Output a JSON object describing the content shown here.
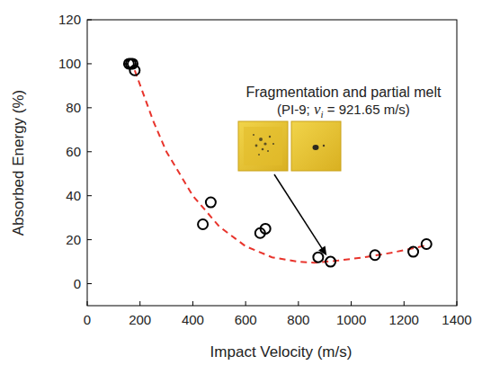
{
  "chart_data": {
    "type": "scatter",
    "x_label": "Impact Velocity (m/s)",
    "y_label": "Absorbed Energy (%)",
    "xlim": [
      0,
      1400
    ],
    "ylim": [
      -10,
      120
    ],
    "xticks": [
      0,
      200,
      400,
      600,
      800,
      1000,
      1200,
      1400
    ],
    "yticks": [
      0,
      20,
      40,
      60,
      80,
      100,
      120
    ],
    "grid": false,
    "series": [
      {
        "type": "scatter",
        "marker": "circle",
        "color": "#000000",
        "x": [
          158,
          165,
          172,
          180,
          438,
          468,
          655,
          675,
          875,
          921.65,
          1090,
          1235,
          1285
        ],
        "values": [
          100,
          100,
          100,
          97,
          27,
          37,
          23,
          25,
          12,
          10,
          13,
          14.5,
          18
        ]
      },
      {
        "type": "line",
        "line_style": "dashed",
        "color": "#e8342c",
        "x": [
          180,
          250,
          300,
          400,
          500,
          600,
          700,
          800,
          860,
          950,
          1050,
          1150,
          1250,
          1285
        ],
        "values": [
          97,
          74,
          60,
          40,
          26,
          17,
          12,
          10,
          9.5,
          10.5,
          12,
          14,
          16.5,
          17.5
        ]
      }
    ],
    "annotation": {
      "text": "Fragmentation and partial melt",
      "detail_prefix": "(PI-9; ",
      "detail_var": "v",
      "detail_sub": "i",
      "detail_suffix": " = 921.65 m/s)",
      "x": 921.65,
      "y": 10
    }
  }
}
